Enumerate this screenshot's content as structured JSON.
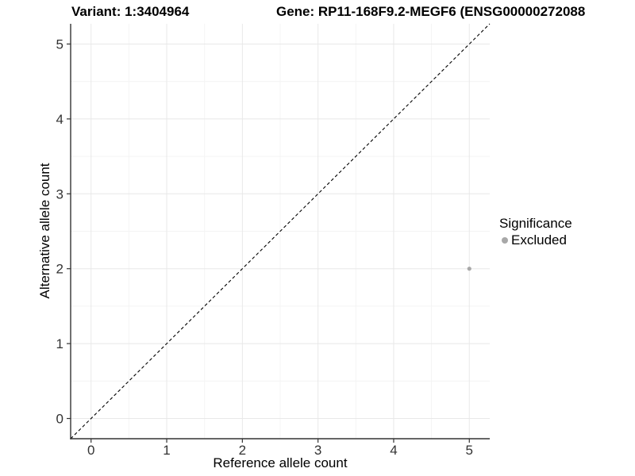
{
  "header": {
    "variant_title": "Variant: 1:3404964",
    "gene_title": "Gene: RP11-168F9.2-MEGF6 (ENSG00000272088"
  },
  "chart_data": {
    "type": "scatter",
    "xlabel": "Reference allele count",
    "ylabel": "Alternative allele count",
    "xlim": [
      -0.27,
      5.27
    ],
    "ylim": [
      -0.27,
      5.27
    ],
    "x_ticks": [
      0,
      1,
      2,
      3,
      4,
      5
    ],
    "y_ticks": [
      0,
      1,
      2,
      3,
      4,
      5
    ],
    "grid": true,
    "points": [
      {
        "x": 5,
        "y": 2,
        "series": "Excluded"
      }
    ],
    "identity_line": {
      "from": [
        -0.27,
        -0.27
      ],
      "to": [
        5.27,
        5.27
      ],
      "style": "dashed"
    },
    "legend": {
      "title": "Significance",
      "position": "right",
      "entries": [
        {
          "label": "Excluded",
          "color": "#a8a8a8"
        }
      ]
    }
  },
  "colors": {
    "background": "#ffffff",
    "point": "#a8a8a8",
    "axis": "#333333",
    "tick_label": "#333333",
    "grid_major": "#e8e8e8",
    "grid_minor": "#f4f4f4",
    "identity_line": "#000000"
  }
}
